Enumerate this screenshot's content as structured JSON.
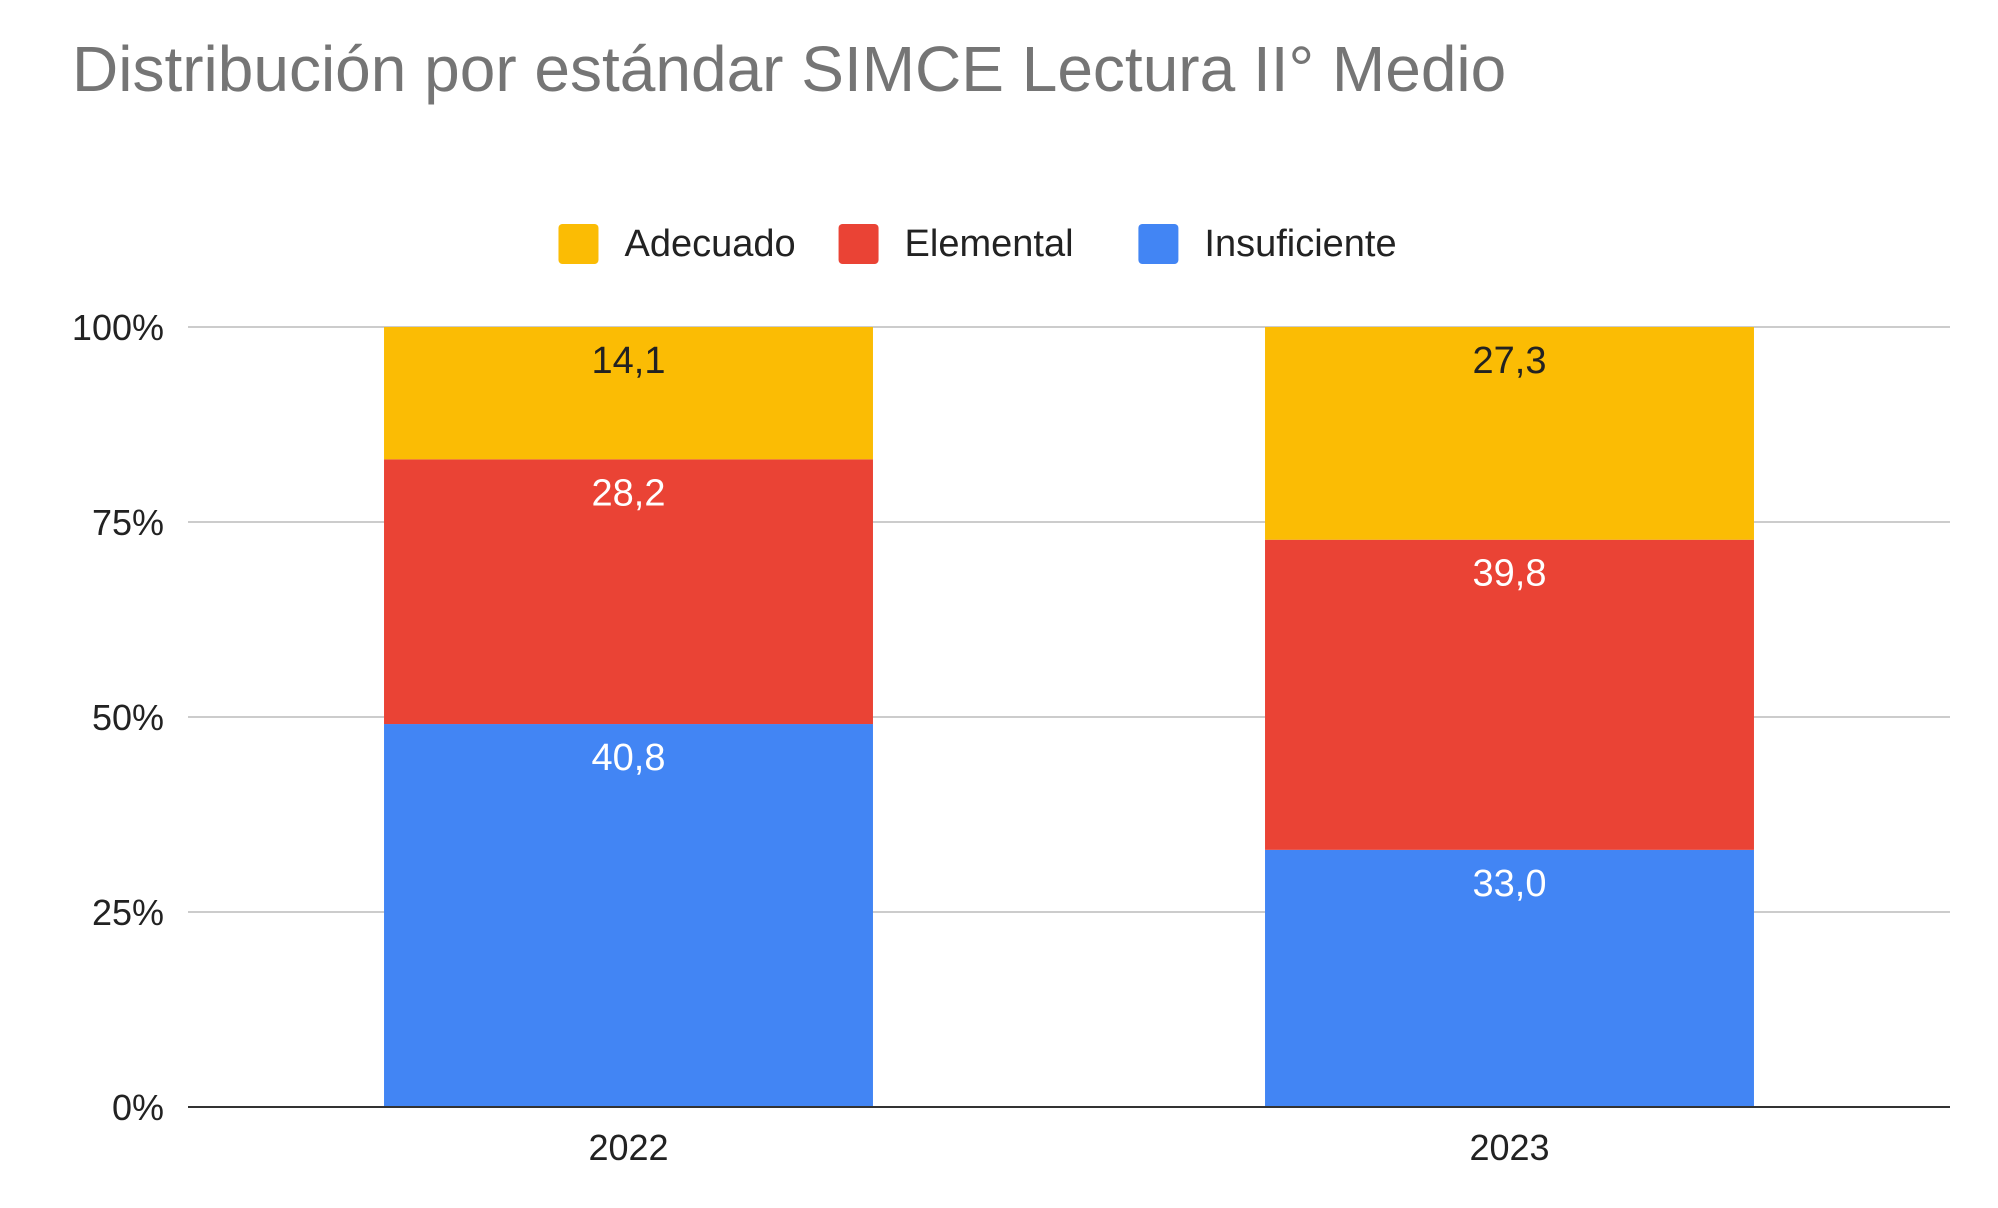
{
  "chart_data": {
    "type": "bar",
    "stacked": true,
    "title": "Distribución por estándar SIMCE Lectura II° Medio",
    "categories": [
      "2022",
      "2023"
    ],
    "series": [
      {
        "name": "Insuficiente",
        "color": "#4285F4",
        "label_color": "#ffffff",
        "values": [
          40.8,
          33.0
        ],
        "labels": [
          "40,8",
          "33,0"
        ]
      },
      {
        "name": "Elemental",
        "color": "#EA4335",
        "label_color": "#ffffff",
        "values": [
          28.2,
          39.8
        ],
        "labels": [
          "28,2",
          "39,8"
        ]
      },
      {
        "name": "Adecuado",
        "color": "#FBBC04",
        "label_color": "#222222",
        "values": [
          14.1,
          27.3
        ],
        "labels": [
          "14,1",
          "27,3"
        ]
      }
    ],
    "legend_order": [
      "Adecuado",
      "Elemental",
      "Insuficiente"
    ],
    "legend_position": "top",
    "percent_stacked": true,
    "ylim": [
      0,
      100
    ],
    "y_ticks": [
      "0%",
      "25%",
      "50%",
      "75%",
      "100%"
    ],
    "grid": true
  }
}
